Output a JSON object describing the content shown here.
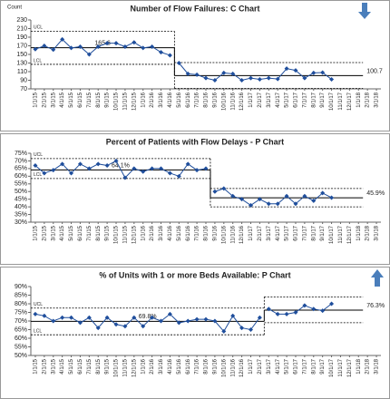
{
  "chart_data": [
    {
      "type": "line",
      "title": "Number of Flow Failures: C Chart",
      "y_label": "Count",
      "categories": [
        "1/1/15",
        "2/1/15",
        "3/1/15",
        "4/1/15",
        "5/1/15",
        "6/1/15",
        "7/1/15",
        "8/1/15",
        "9/1/15",
        "10/1/15",
        "11/1/15",
        "12/1/15",
        "1/1/16",
        "2/1/16",
        "3/1/16",
        "4/1/16",
        "5/1/16",
        "6/1/16",
        "7/1/16",
        "8/1/16",
        "9/1/16",
        "10/1/16",
        "11/1/16",
        "12/1/16",
        "1/1/17",
        "2/1/17",
        "3/1/17",
        "4/1/17",
        "5/1/17",
        "6/1/17",
        "7/1/17",
        "8/1/17",
        "9/1/17",
        "10/1/17",
        "11/1/17",
        "12/1/17",
        "1/1/18",
        "2/1/18",
        "3/1/18"
      ],
      "ylim": [
        70,
        230
      ],
      "yticks": [
        70,
        90,
        110,
        130,
        150,
        170,
        190,
        210,
        230
      ],
      "color": "#1f4e9c",
      "limit_labels": [
        "UCL",
        "LCL"
      ],
      "phases": [
        {
          "center": 165.6,
          "ucl": 204,
          "lcl": 127,
          "values": [
            162,
            170,
            161,
            185,
            165,
            168,
            150,
            168,
            176,
            176,
            168,
            178,
            165,
            168,
            155,
            148
          ]
        },
        {
          "center": 100.7,
          "ucl": 131,
          "lcl": 71,
          "values": [
            130,
            105,
            103,
            95,
            90,
            107,
            105,
            90,
            95,
            92,
            95,
            93,
            117,
            113,
            95,
            107,
            108,
            92
          ]
        }
      ]
    },
    {
      "type": "line",
      "title": "Percent of Patients with Flow Delays - P Chart",
      "categories": [
        "1/1/15",
        "2/1/15",
        "3/1/15",
        "4/1/15",
        "5/1/15",
        "6/1/15",
        "7/1/15",
        "8/1/15",
        "9/1/15",
        "10/1/15",
        "11/1/15",
        "12/1/15",
        "1/1/16",
        "2/1/16",
        "3/1/16",
        "4/1/16",
        "5/1/16",
        "6/1/16",
        "7/1/16",
        "8/1/16",
        "9/1/16",
        "10/1/16",
        "11/1/16",
        "12/1/16",
        "1/1/17",
        "2/1/17",
        "3/1/17",
        "4/1/17",
        "5/1/17",
        "6/1/17",
        "7/1/17",
        "8/1/17",
        "9/1/17",
        "10/1/17",
        "11/1/17",
        "12/1/17",
        "1/1/18",
        "2/1/18",
        "3/1/18"
      ],
      "ylim": [
        30,
        75
      ],
      "yticks": [
        {
          "value": 30,
          "label": "30%"
        },
        {
          "value": 35,
          "label": "35%"
        },
        {
          "value": 40,
          "label": "40%"
        },
        {
          "value": 45,
          "label": "45%"
        },
        {
          "value": 50,
          "label": "50%"
        },
        {
          "value": 55,
          "label": "55%"
        },
        {
          "value": 60,
          "label": "60%"
        },
        {
          "value": 65,
          "label": "65%"
        },
        {
          "value": 70,
          "label": "70%"
        },
        {
          "value": 75,
          "label": "75%"
        }
      ],
      "color": "#1f4e9c",
      "limit_labels": [
        "UCL",
        "LCL"
      ],
      "phases": [
        {
          "center": 64.1,
          "center_label": "64.1%",
          "ucl": 71.5,
          "lcl": 58.5,
          "values": [
            67,
            62,
            64,
            68,
            62,
            68,
            65,
            68,
            67,
            70,
            59,
            65,
            63,
            65,
            65,
            62,
            60,
            68,
            64,
            65
          ]
        },
        {
          "center": 45.9,
          "center_label": "45.9%",
          "ucl": 52,
          "lcl": 40,
          "values": [
            50,
            52,
            47,
            45,
            41,
            45,
            42,
            42,
            47,
            42,
            47,
            44,
            49,
            46
          ]
        }
      ]
    },
    {
      "type": "line",
      "title": "% of Units with 1 or more Beds Available: P Chart",
      "categories": [
        "1/1/15",
        "2/1/15",
        "3/1/15",
        "4/1/15",
        "5/1/15",
        "6/1/15",
        "7/1/15",
        "8/1/15",
        "9/1/15",
        "10/1/15",
        "11/1/15",
        "12/1/15",
        "1/1/16",
        "2/1/16",
        "3/1/16",
        "4/1/16",
        "5/1/16",
        "6/1/16",
        "7/1/16",
        "8/1/16",
        "9/1/16",
        "10/1/16",
        "11/1/16",
        "12/1/16",
        "1/1/17",
        "2/1/17",
        "3/1/17",
        "4/1/17",
        "5/1/17",
        "6/1/17",
        "7/1/17",
        "8/1/17",
        "9/1/17",
        "10/1/17",
        "11/1/17",
        "12/1/17",
        "1/1/18",
        "2/1/18",
        "3/1/18"
      ],
      "ylim": [
        50,
        90
      ],
      "yticks": [
        {
          "value": 50,
          "label": "50%"
        },
        {
          "value": 55,
          "label": "55%"
        },
        {
          "value": 60,
          "label": "60%"
        },
        {
          "value": 65,
          "label": "65%"
        },
        {
          "value": 70,
          "label": "70%"
        },
        {
          "value": 75,
          "label": "75%"
        },
        {
          "value": 80,
          "label": "80%"
        },
        {
          "value": 85,
          "label": "85%"
        },
        {
          "value": 90,
          "label": "90%"
        }
      ],
      "color": "#1f4e9c",
      "limit_labels": [
        "UCL",
        "LCL"
      ],
      "phases": [
        {
          "center": 69.8,
          "center_label": "69.8%",
          "ucl": 77.5,
          "lcl": 62,
          "values": [
            74,
            73,
            70,
            72,
            72,
            69,
            72,
            66,
            72,
            68,
            67,
            72,
            67,
            72,
            70,
            74,
            69,
            70,
            71,
            71,
            70,
            64,
            73,
            66,
            65,
            72
          ]
        },
        {
          "center": 76.3,
          "center_label": "76.3%",
          "ucl": 84,
          "lcl": 69,
          "values": [
            77,
            74,
            74,
            75,
            79,
            77,
            76,
            80
          ]
        }
      ]
    }
  ]
}
